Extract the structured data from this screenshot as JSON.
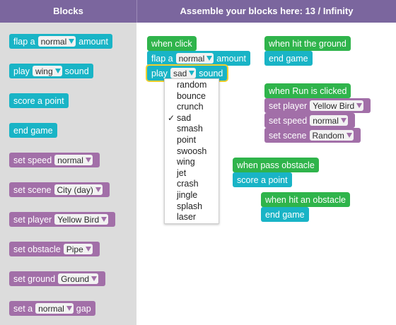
{
  "header": {
    "blocks_title": "Blocks",
    "workspace_title": "Assemble your blocks here: 13 / Infinity"
  },
  "palette": {
    "flap": {
      "prefix": "flap a",
      "value": "normal",
      "suffix": "amount"
    },
    "play": {
      "prefix": "play",
      "value": "wing",
      "suffix": "sound"
    },
    "score": {
      "label": "score a point"
    },
    "end": {
      "label": "end game"
    },
    "speed": {
      "prefix": "set speed",
      "value": "normal"
    },
    "scene": {
      "prefix": "set scene",
      "value": "City (day)"
    },
    "player": {
      "prefix": "set player",
      "value": "Yellow Bird"
    },
    "obstacle": {
      "prefix": "set obstacle",
      "value": "Pipe"
    },
    "ground": {
      "prefix": "set ground",
      "value": "Ground"
    },
    "gap": {
      "prefix": "set a",
      "value": "normal",
      "suffix": "gap"
    }
  },
  "workspace": {
    "click_group": {
      "event": "when click",
      "flap": {
        "prefix": "flap a",
        "value": "normal",
        "suffix": "amount"
      },
      "play": {
        "prefix": "play",
        "value": "sad",
        "suffix": "sound"
      }
    },
    "ground_group": {
      "event": "when hit the ground",
      "action": "end game"
    },
    "run_group": {
      "event": "when Run is clicked",
      "player": {
        "prefix": "set player",
        "value": "Yellow Bird"
      },
      "speed": {
        "prefix": "set speed",
        "value": "normal"
      },
      "scene": {
        "prefix": "set scene",
        "value": "Random"
      }
    },
    "pass_group": {
      "event": "when pass obstacle",
      "action": "score a point"
    },
    "obstacle_group": {
      "event": "when hit an obstacle",
      "action": "end game"
    }
  },
  "sound_menu": {
    "check_mark": "✓",
    "selected": "sad",
    "items": [
      "random",
      "bounce",
      "crunch",
      "sad",
      "smash",
      "point",
      "swoosh",
      "wing",
      "jet",
      "crash",
      "jingle",
      "splash",
      "laser"
    ]
  },
  "colors": {
    "header": "#7b669e",
    "palette_bg": "#dcdcdc",
    "action_block": "#19b4c6",
    "setter_block": "#a26fa8",
    "event_block": "#2fb44b",
    "selection_outline": "#f2cf2c"
  },
  "icons": {
    "dropdown": "triangle-down-icon",
    "check": "check-icon"
  }
}
